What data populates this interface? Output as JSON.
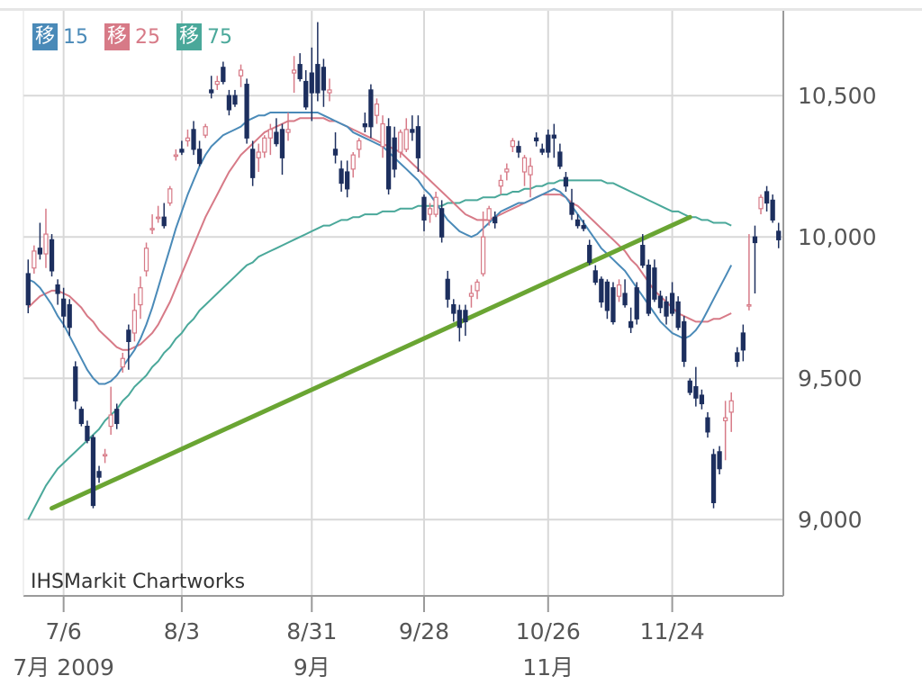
{
  "legend": [
    {
      "badge": "移",
      "value": "15",
      "color": "#4a8ab8"
    },
    {
      "badge": "移",
      "value": "25",
      "color": "#d77a87"
    },
    {
      "badge": "移",
      "value": "75",
      "color": "#4aa89a"
    }
  ],
  "watermark": "IHSMarkit Chartworks",
  "colors": {
    "up": "#d77a87",
    "down": "#1d2f5e",
    "ma15": "#4a8ab8",
    "ma25": "#d77a87",
    "ma75": "#4aa89a",
    "trend": "#6aa533",
    "grid": "#d8d8d8",
    "axis_text": "#555555"
  },
  "chart_data": {
    "type": "candlestick",
    "yticks": [
      9000,
      9500,
      10000,
      10500
    ],
    "ytick_labels": [
      "9,000",
      "9,500",
      "10,000",
      "10,500"
    ],
    "ylim": [
      8730,
      10800
    ],
    "xticks": [
      {
        "index": 6,
        "label": "7/6",
        "sub": "7月 2009"
      },
      {
        "index": 26,
        "label": "8/3",
        "sub": ""
      },
      {
        "index": 48,
        "label": "8/31",
        "sub": "9月"
      },
      {
        "index": 67,
        "label": "9/28",
        "sub": ""
      },
      {
        "index": 88,
        "label": "10/26",
        "sub": "11月"
      },
      {
        "index": 109,
        "label": "11/24",
        "sub": ""
      }
    ],
    "ohlc": [
      [
        9870,
        9920,
        9730,
        9760
      ],
      [
        9890,
        9970,
        9870,
        9950
      ],
      [
        9960,
        10050,
        9920,
        9940
      ],
      [
        9940,
        10100,
        9890,
        10010
      ],
      [
        9990,
        10010,
        9860,
        9880
      ],
      [
        9830,
        9850,
        9760,
        9800
      ],
      [
        9780,
        9820,
        9680,
        9720
      ],
      [
        9760,
        9780,
        9650,
        9680
      ],
      [
        9540,
        9560,
        9390,
        9420
      ],
      [
        9390,
        9400,
        9330,
        9340
      ],
      [
        9330,
        9350,
        9270,
        9280
      ],
      [
        9290,
        9300,
        9040,
        9050
      ],
      [
        9170,
        9190,
        9130,
        9150
      ],
      [
        9230,
        9250,
        9200,
        9230
      ],
      [
        9330,
        9470,
        9300,
        9370
      ],
      [
        9390,
        9410,
        9320,
        9340
      ],
      [
        9540,
        9590,
        9520,
        9570
      ],
      [
        9670,
        9690,
        9530,
        9630
      ],
      [
        9660,
        9800,
        9630,
        9740
      ],
      [
        9760,
        9860,
        9710,
        9820
      ],
      [
        9880,
        9980,
        9860,
        9960
      ],
      [
        10030,
        10080,
        10010,
        10030
      ],
      [
        10070,
        10110,
        10050,
        10070
      ],
      [
        10070,
        10120,
        10030,
        10040
      ],
      [
        10120,
        10180,
        10110,
        10170
      ],
      [
        10290,
        10310,
        10270,
        10290
      ],
      [
        10310,
        10340,
        10290,
        10300
      ],
      [
        10340,
        10380,
        10320,
        10350
      ],
      [
        10380,
        10410,
        10290,
        10310
      ],
      [
        10310,
        10340,
        10250,
        10260
      ],
      [
        10360,
        10400,
        10350,
        10390
      ],
      [
        10520,
        10570,
        10490,
        10510
      ],
      [
        10540,
        10570,
        10520,
        10550
      ],
      [
        10600,
        10620,
        10540,
        10550
      ],
      [
        10500,
        10520,
        10430,
        10450
      ],
      [
        10500,
        10520,
        10460,
        10470
      ],
      [
        10570,
        10610,
        10530,
        10590
      ],
      [
        10540,
        10560,
        10330,
        10350
      ],
      [
        10310,
        10340,
        10180,
        10210
      ],
      [
        10280,
        10330,
        10230,
        10300
      ],
      [
        10300,
        10360,
        10280,
        10350
      ],
      [
        10350,
        10400,
        10290,
        10380
      ],
      [
        10370,
        10420,
        10320,
        10330
      ],
      [
        10380,
        10400,
        10220,
        10280
      ],
      [
        10370,
        10440,
        10340,
        10380
      ],
      [
        10580,
        10640,
        10510,
        10590
      ],
      [
        10610,
        10650,
        10550,
        10560
      ],
      [
        10550,
        10590,
        10450,
        10460
      ],
      [
        10580,
        10670,
        10410,
        10510
      ],
      [
        10610,
        10760,
        10480,
        10510
      ],
      [
        10600,
        10630,
        10460,
        10520
      ],
      [
        10510,
        10560,
        10480,
        10520
      ],
      [
        10310,
        10370,
        10260,
        10290
      ],
      [
        10240,
        10270,
        10160,
        10190
      ],
      [
        10230,
        10270,
        10140,
        10170
      ],
      [
        10240,
        10300,
        10210,
        10290
      ],
      [
        10310,
        10350,
        10280,
        10340
      ],
      [
        10400,
        10440,
        10370,
        10390
      ],
      [
        10520,
        10540,
        10350,
        10390
      ],
      [
        10430,
        10490,
        10400,
        10470
      ],
      [
        10320,
        10430,
        10280,
        10400
      ],
      [
        10390,
        10420,
        10150,
        10170
      ],
      [
        10350,
        10390,
        10210,
        10240
      ],
      [
        10300,
        10380,
        10280,
        10370
      ],
      [
        10310,
        10420,
        10300,
        10380
      ],
      [
        10380,
        10430,
        10340,
        10370
      ],
      [
        10390,
        10430,
        10230,
        10280
      ],
      [
        10140,
        10150,
        10020,
        10060
      ],
      [
        10080,
        10120,
        10050,
        10100
      ],
      [
        10080,
        10160,
        10070,
        10140
      ],
      [
        10100,
        10130,
        9980,
        10000
      ],
      [
        9850,
        9880,
        9750,
        9780
      ],
      [
        9760,
        9780,
        9700,
        9730
      ],
      [
        9740,
        9760,
        9630,
        9680
      ],
      [
        9740,
        9760,
        9650,
        9700
      ],
      [
        9790,
        9830,
        9750,
        9800
      ],
      [
        9810,
        9850,
        9780,
        9840
      ],
      [
        9870,
        10090,
        9860,
        10000
      ],
      [
        10060,
        10110,
        10040,
        10100
      ],
      [
        10070,
        10090,
        10030,
        10050
      ],
      [
        10180,
        10220,
        10150,
        10200
      ],
      [
        10230,
        10260,
        10200,
        10240
      ],
      [
        10320,
        10350,
        10300,
        10340
      ],
      [
        10320,
        10340,
        10280,
        10300
      ],
      [
        10230,
        10290,
        10180,
        10280
      ],
      [
        10220,
        10280,
        10140,
        10250
      ],
      [
        10350,
        10370,
        10320,
        10340
      ],
      [
        10310,
        10330,
        10290,
        10300
      ],
      [
        10360,
        10380,
        10280,
        10300
      ],
      [
        10360,
        10400,
        10280,
        10350
      ],
      [
        10300,
        10330,
        10240,
        10250
      ],
      [
        10210,
        10230,
        10160,
        10180
      ],
      [
        10120,
        10170,
        10060,
        10080
      ],
      [
        10060,
        10080,
        10030,
        10040
      ],
      [
        10040,
        10060,
        10020,
        10030
      ],
      [
        9970,
        9990,
        9900,
        9910
      ],
      [
        9880,
        9900,
        9830,
        9840
      ],
      [
        9850,
        9860,
        9750,
        9770
      ],
      [
        9840,
        9850,
        9710,
        9740
      ],
      [
        9820,
        9840,
        9690,
        9700
      ],
      [
        9790,
        9850,
        9770,
        9830
      ],
      [
        9800,
        9850,
        9750,
        9760
      ],
      [
        9700,
        9750,
        9660,
        9680
      ],
      [
        9820,
        9840,
        9690,
        9710
      ],
      [
        9970,
        10010,
        9890,
        9900
      ],
      [
        9900,
        9920,
        9720,
        9730
      ],
      [
        9890,
        9920,
        9770,
        9780
      ],
      [
        9790,
        9810,
        9730,
        9750
      ],
      [
        9770,
        9790,
        9690,
        9720
      ],
      [
        9800,
        9840,
        9720,
        9730
      ],
      [
        9770,
        9790,
        9670,
        9680
      ],
      [
        9700,
        9720,
        9540,
        9560
      ],
      [
        9490,
        9500,
        9440,
        9450
      ],
      [
        9470,
        9540,
        9400,
        9430
      ],
      [
        9440,
        9460,
        9390,
        9410
      ],
      [
        9360,
        9380,
        9290,
        9310
      ],
      [
        9230,
        9250,
        9040,
        9060
      ],
      [
        9240,
        9260,
        9160,
        9180
      ],
      [
        9350,
        9420,
        9210,
        9360
      ],
      [
        9380,
        9450,
        9310,
        9420
      ],
      [
        9590,
        9610,
        9540,
        9560
      ],
      [
        9660,
        9690,
        9560,
        9600
      ],
      [
        9760,
        10010,
        9740,
        9760
      ],
      [
        10000,
        10040,
        9800,
        9980
      ],
      [
        10100,
        10150,
        10080,
        10140
      ],
      [
        10160,
        10180,
        10090,
        10120
      ],
      [
        10130,
        10150,
        10050,
        10060
      ],
      [
        10020,
        10050,
        9960,
        9990
      ]
    ],
    "ma15": [
      9850,
      9840,
      9820,
      9790,
      9760,
      9720,
      9690,
      9650,
      9610,
      9570,
      9530,
      9500,
      9480,
      9480,
      9490,
      9510,
      9540,
      9570,
      9600,
      9640,
      9690,
      9750,
      9820,
      9890,
      9960,
      10030,
      10090,
      10150,
      10200,
      10250,
      10290,
      10320,
      10340,
      10360,
      10370,
      10380,
      10390,
      10410,
      10420,
      10430,
      10430,
      10440,
      10440,
      10440,
      10440,
      10440,
      10440,
      10440,
      10440,
      10440,
      10430,
      10420,
      10410,
      10400,
      10390,
      10370,
      10360,
      10350,
      10340,
      10330,
      10320,
      10300,
      10280,
      10260,
      10240,
      10220,
      10200,
      10170,
      10150,
      10120,
      10090,
      10060,
      10040,
      10020,
      10010,
      10000,
      10010,
      10030,
      10050,
      10070,
      10090,
      10100,
      10110,
      10120,
      10120,
      10130,
      10140,
      10150,
      10160,
      10170,
      10160,
      10140,
      10110,
      10080,
      10050,
      10020,
      9990,
      9960,
      9940,
      9920,
      9900,
      9880,
      9850,
      9820,
      9790,
      9760,
      9730,
      9700,
      9680,
      9660,
      9650,
      9640,
      9650,
      9670,
      9700,
      9740,
      9780,
      9820,
      9860,
      9900
    ],
    "ma25": [
      9750,
      9770,
      9790,
      9800,
      9810,
      9810,
      9800,
      9790,
      9770,
      9750,
      9720,
      9700,
      9670,
      9650,
      9630,
      9610,
      9600,
      9600,
      9610,
      9620,
      9640,
      9660,
      9690,
      9730,
      9770,
      9820,
      9870,
      9920,
      9970,
      10020,
      10070,
      10110,
      10150,
      10190,
      10230,
      10260,
      10290,
      10310,
      10330,
      10350,
      10370,
      10380,
      10390,
      10400,
      10410,
      10410,
      10420,
      10420,
      10420,
      10420,
      10420,
      10410,
      10410,
      10400,
      10390,
      10380,
      10370,
      10360,
      10350,
      10340,
      10330,
      10320,
      10310,
      10300,
      10280,
      10260,
      10240,
      10220,
      10200,
      10180,
      10160,
      10140,
      10120,
      10100,
      10080,
      10070,
      10060,
      10060,
      10060,
      10070,
      10080,
      10090,
      10100,
      10110,
      10120,
      10130,
      10140,
      10150,
      10150,
      10150,
      10150,
      10140,
      10120,
      10110,
      10090,
      10070,
      10050,
      10030,
      10010,
      9990,
      9970,
      9950,
      9920,
      9900,
      9870,
      9840,
      9810,
      9790,
      9770,
      9750,
      9730,
      9720,
      9710,
      9700,
      9700,
      9700,
      9710,
      9710,
      9720,
      9730
    ],
    "ma75": [
      9000,
      9040,
      9080,
      9120,
      9150,
      9180,
      9200,
      9220,
      9240,
      9260,
      9280,
      9300,
      9320,
      9350,
      9370,
      9390,
      9420,
      9440,
      9470,
      9490,
      9510,
      9540,
      9560,
      9590,
      9610,
      9640,
      9660,
      9690,
      9710,
      9740,
      9760,
      9780,
      9800,
      9820,
      9840,
      9860,
      9880,
      9900,
      9910,
      9930,
      9940,
      9950,
      9960,
      9970,
      9980,
      9990,
      10000,
      10010,
      10020,
      10030,
      10040,
      10040,
      10050,
      10060,
      10060,
      10070,
      10070,
      10080,
      10080,
      10080,
      10090,
      10090,
      10090,
      10100,
      10100,
      10100,
      10110,
      10110,
      10110,
      10110,
      10110,
      10120,
      10120,
      10120,
      10130,
      10130,
      10130,
      10140,
      10140,
      10140,
      10150,
      10150,
      10160,
      10160,
      10170,
      10170,
      10180,
      10180,
      10190,
      10190,
      10200,
      10200,
      10200,
      10200,
      10200,
      10200,
      10200,
      10200,
      10190,
      10190,
      10180,
      10170,
      10160,
      10150,
      10140,
      10130,
      10120,
      10110,
      10100,
      10090,
      10090,
      10080,
      10070,
      10070,
      10060,
      10060,
      10050,
      10050,
      10050,
      10040
    ],
    "trendline": {
      "from": {
        "index": 4,
        "value": 9040
      },
      "to": {
        "index": 112,
        "value": 10070
      }
    }
  }
}
